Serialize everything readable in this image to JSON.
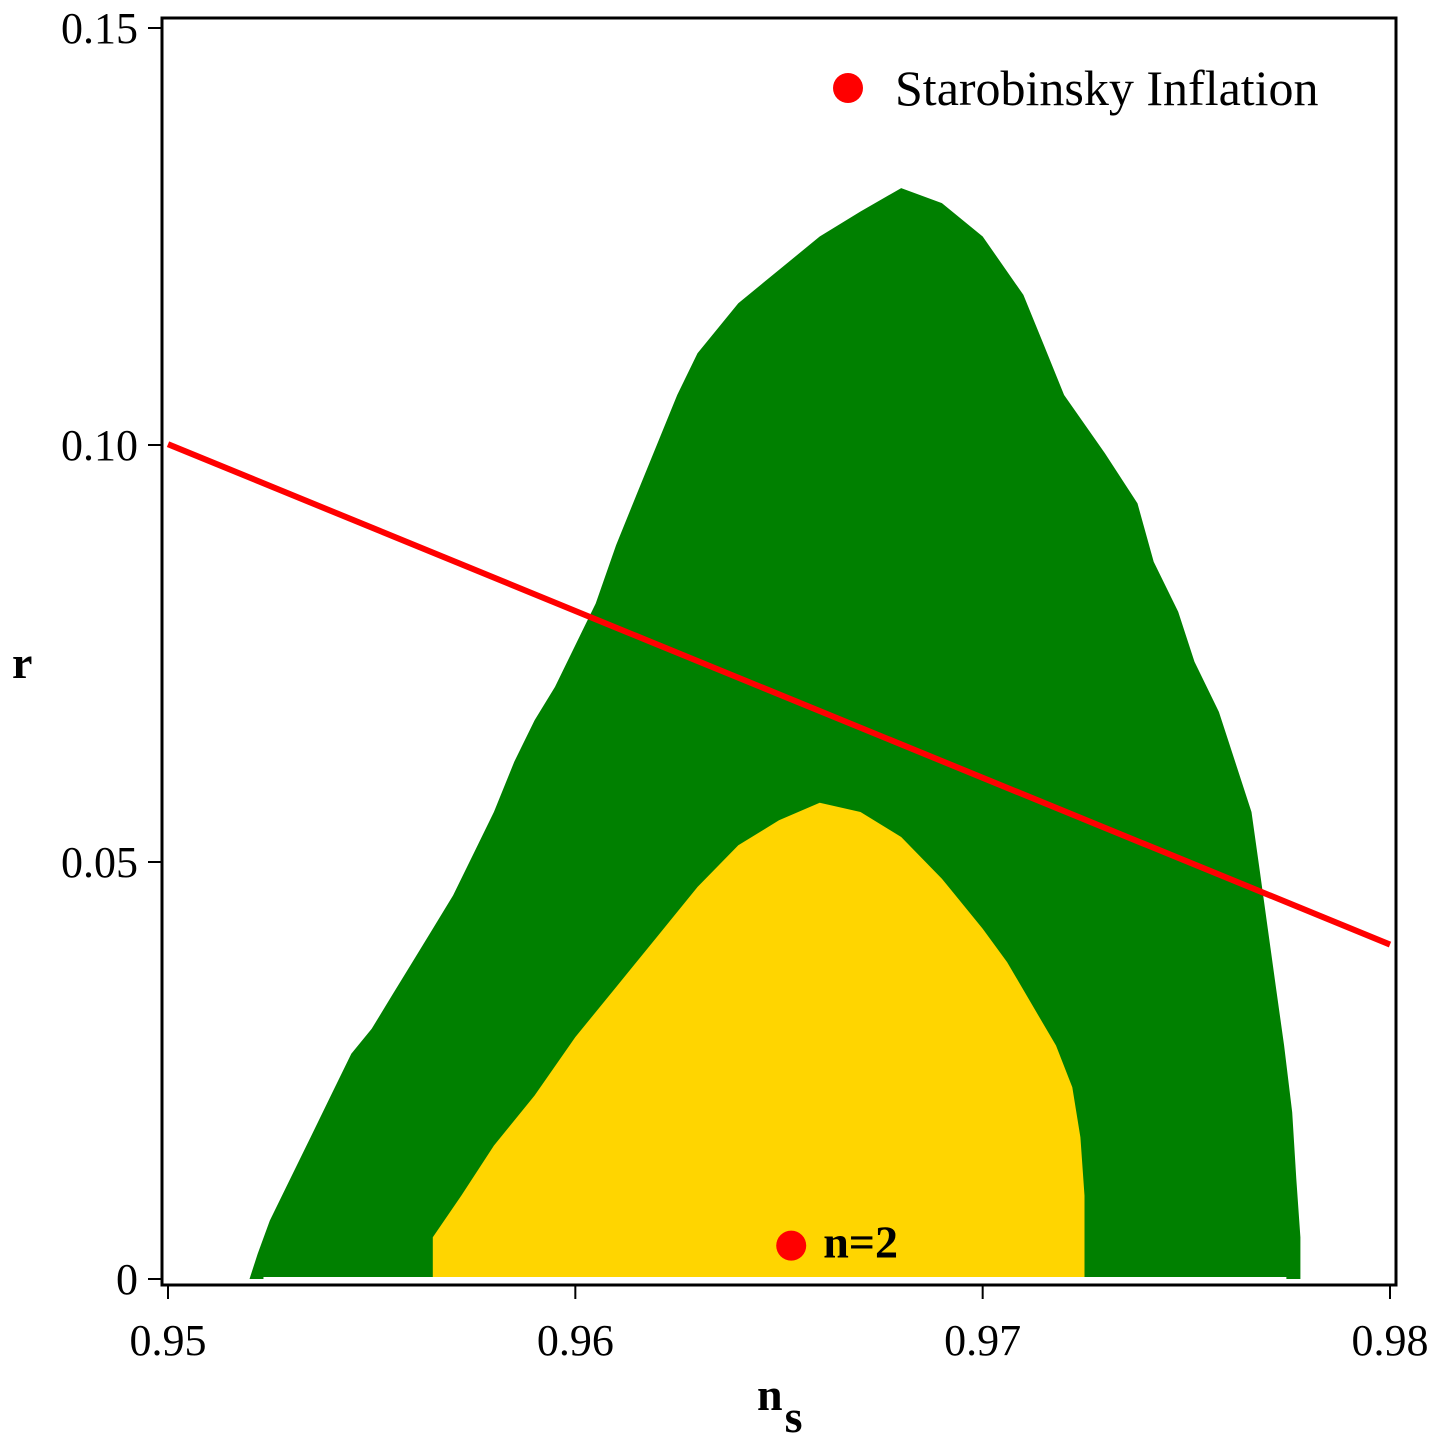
{
  "chart_data": {
    "type": "scatter",
    "title": "",
    "xlabel": "n",
    "xlabel_subscript": "s",
    "ylabel": "r",
    "xlim": [
      0.95,
      0.98
    ],
    "ylim": [
      0,
      0.15
    ],
    "x_ticks": [
      {
        "value": 0.95,
        "label": "0.95"
      },
      {
        "value": 0.96,
        "label": "0.96"
      },
      {
        "value": 0.97,
        "label": "0.97"
      },
      {
        "value": 0.98,
        "label": "0.98"
      }
    ],
    "y_ticks": [
      {
        "value": 0,
        "label": "0"
      },
      {
        "value": 0.05,
        "label": "0.05"
      },
      {
        "value": 0.1,
        "label": "0.10"
      },
      {
        "value": 0.15,
        "label": "0.15"
      }
    ],
    "grid": false,
    "legend": {
      "placement": "top-right",
      "entries": [
        {
          "label": "Starobinsky Inflation",
          "color": "#ff0000",
          "marker": "circle"
        }
      ]
    },
    "regions": [
      {
        "id": "outer-contour",
        "color": "#008000",
        "points": [
          [
            0.952,
            0.0
          ],
          [
            0.9522,
            0.003
          ],
          [
            0.9525,
            0.007
          ],
          [
            0.953,
            0.012
          ],
          [
            0.9535,
            0.017
          ],
          [
            0.954,
            0.022
          ],
          [
            0.9545,
            0.027
          ],
          [
            0.955,
            0.03
          ],
          [
            0.9555,
            0.034
          ],
          [
            0.956,
            0.038
          ],
          [
            0.9565,
            0.042
          ],
          [
            0.957,
            0.046
          ],
          [
            0.9575,
            0.051
          ],
          [
            0.958,
            0.056
          ],
          [
            0.9585,
            0.062
          ],
          [
            0.959,
            0.067
          ],
          [
            0.9595,
            0.071
          ],
          [
            0.96,
            0.076
          ],
          [
            0.9605,
            0.081
          ],
          [
            0.961,
            0.088
          ],
          [
            0.9615,
            0.094
          ],
          [
            0.962,
            0.1
          ],
          [
            0.9625,
            0.106
          ],
          [
            0.963,
            0.111
          ],
          [
            0.964,
            0.117
          ],
          [
            0.965,
            0.121
          ],
          [
            0.966,
            0.125
          ],
          [
            0.967,
            0.128
          ],
          [
            0.968,
            0.1308
          ],
          [
            0.969,
            0.129
          ],
          [
            0.97,
            0.125
          ],
          [
            0.971,
            0.118
          ],
          [
            0.9715,
            0.112
          ],
          [
            0.972,
            0.106
          ],
          [
            0.973,
            0.099
          ],
          [
            0.9738,
            0.093
          ],
          [
            0.9742,
            0.086
          ],
          [
            0.9748,
            0.08
          ],
          [
            0.9752,
            0.074
          ],
          [
            0.9758,
            0.068
          ],
          [
            0.9762,
            0.062
          ],
          [
            0.9766,
            0.056
          ],
          [
            0.9768,
            0.049
          ],
          [
            0.977,
            0.042
          ],
          [
            0.9772,
            0.035
          ],
          [
            0.9774,
            0.028
          ],
          [
            0.9776,
            0.02
          ],
          [
            0.9777,
            0.012
          ],
          [
            0.9778,
            0.005
          ],
          [
            0.9778,
            0.0
          ]
        ]
      },
      {
        "id": "inner-contour",
        "color": "#ffd500",
        "points": [
          [
            0.9565,
            0.0
          ],
          [
            0.9565,
            0.005
          ],
          [
            0.9572,
            0.01
          ],
          [
            0.958,
            0.016
          ],
          [
            0.959,
            0.022
          ],
          [
            0.96,
            0.029
          ],
          [
            0.961,
            0.035
          ],
          [
            0.962,
            0.041
          ],
          [
            0.963,
            0.047
          ],
          [
            0.964,
            0.052
          ],
          [
            0.965,
            0.055
          ],
          [
            0.966,
            0.0571
          ],
          [
            0.967,
            0.056
          ],
          [
            0.968,
            0.053
          ],
          [
            0.969,
            0.048
          ],
          [
            0.97,
            0.042
          ],
          [
            0.9706,
            0.038
          ],
          [
            0.9712,
            0.033
          ],
          [
            0.9718,
            0.028
          ],
          [
            0.9722,
            0.023
          ],
          [
            0.9724,
            0.017
          ],
          [
            0.9725,
            0.01
          ],
          [
            0.9725,
            0.005
          ],
          [
            0.9725,
            0.0
          ]
        ]
      }
    ],
    "series": [
      {
        "name": "Starobinsky Inflation",
        "color": "#ff0000",
        "marker": "circle",
        "points": [
          {
            "x": 0.9653,
            "y": 0.004,
            "label": "n=2"
          }
        ]
      },
      {
        "name": "",
        "color": "#ff0000",
        "type": "line",
        "x": [
          0.95,
          0.98
        ],
        "y": [
          0.1001,
          0.0401
        ]
      }
    ]
  }
}
